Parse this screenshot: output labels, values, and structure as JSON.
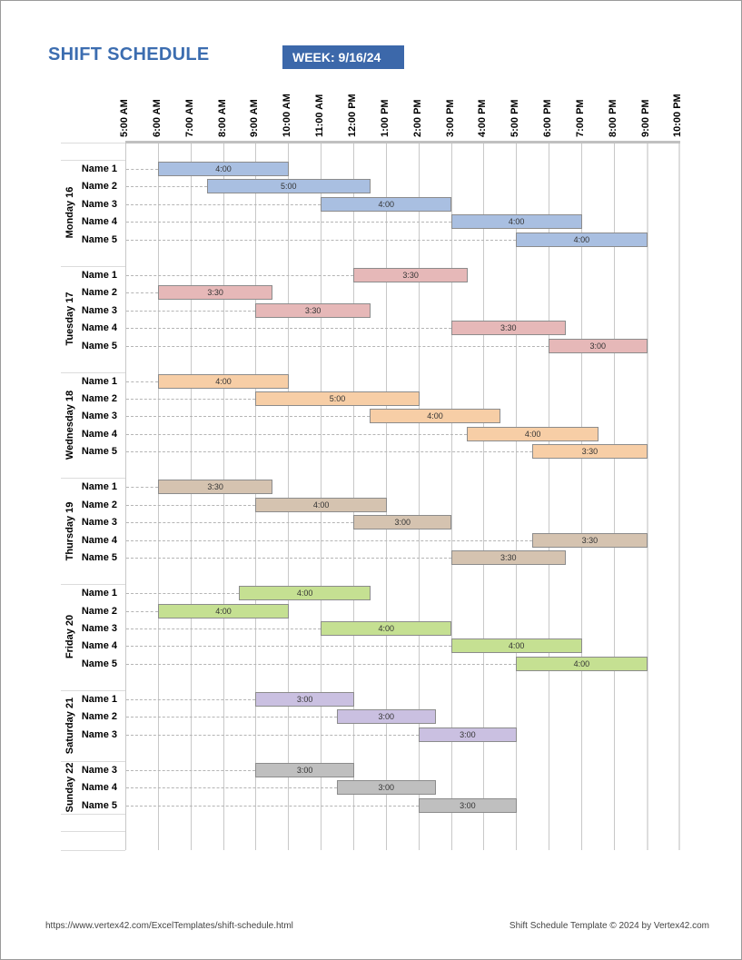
{
  "title": "SHIFT SCHEDULE",
  "week": "WEEK:  9/16/24",
  "hours": [
    "5:00 AM",
    "6:00 AM",
    "7:00 AM",
    "8:00 AM",
    "9:00 AM",
    "10:00 AM",
    "11:00 AM",
    "12:00 PM",
    "1:00 PM",
    "2:00 PM",
    "3:00 PM",
    "4:00 PM",
    "5:00 PM",
    "6:00 PM",
    "7:00 PM",
    "8:00 PM",
    "9:00 PM",
    "10:00 PM"
  ],
  "days": [
    {
      "label": "Monday 16",
      "color": "#a9bfe1",
      "shifts": [
        {
          "name": "Name 1",
          "start": "6:00 AM",
          "end": "10:00 AM",
          "duration": "4:00"
        },
        {
          "name": "Name 2",
          "start": "7:30 AM",
          "end": "12:30 PM",
          "duration": "5:00"
        },
        {
          "name": "Name 3",
          "start": "11:00 AM",
          "end": "3:00 PM",
          "duration": "4:00"
        },
        {
          "name": "Name 4",
          "start": "3:00 PM",
          "end": "7:00 PM",
          "duration": "4:00"
        },
        {
          "name": "Name 5",
          "start": "5:00 PM",
          "end": "9:00 PM",
          "duration": "4:00"
        }
      ]
    },
    {
      "label": "Tuesday 17",
      "color": "#e6b8b8",
      "shifts": [
        {
          "name": "Name 1",
          "start": "12:00 PM",
          "end": "3:30 PM",
          "duration": "3:30"
        },
        {
          "name": "Name 2",
          "start": "6:00 AM",
          "end": "9:30 AM",
          "duration": "3:30"
        },
        {
          "name": "Name 3",
          "start": "9:00 AM",
          "end": "12:30 PM",
          "duration": "3:30"
        },
        {
          "name": "Name 4",
          "start": "3:00 PM",
          "end": "6:30 PM",
          "duration": "3:30"
        },
        {
          "name": "Name 5",
          "start": "6:00 PM",
          "end": "9:00 PM",
          "duration": "3:00"
        }
      ]
    },
    {
      "label": "Wednesday 18",
      "color": "#f7cea6",
      "shifts": [
        {
          "name": "Name 1",
          "start": "6:00 AM",
          "end": "10:00 AM",
          "duration": "4:00"
        },
        {
          "name": "Name 2",
          "start": "9:00 AM",
          "end": "2:00 PM",
          "duration": "5:00"
        },
        {
          "name": "Name 3",
          "start": "12:30 PM",
          "end": "4:30 PM",
          "duration": "4:00"
        },
        {
          "name": "Name 4",
          "start": "3:30 PM",
          "end": "7:30 PM",
          "duration": "4:00"
        },
        {
          "name": "Name 5",
          "start": "5:30 PM",
          "end": "9:00 PM",
          "duration": "3:30"
        }
      ]
    },
    {
      "label": "Thursday 19",
      "color": "#d5c3b0",
      "shifts": [
        {
          "name": "Name 1",
          "start": "6:00 AM",
          "end": "9:30 AM",
          "duration": "3:30"
        },
        {
          "name": "Name 2",
          "start": "9:00 AM",
          "end": "1:00 PM",
          "duration": "4:00"
        },
        {
          "name": "Name 3",
          "start": "12:00 PM",
          "end": "3:00 PM",
          "duration": "3:00"
        },
        {
          "name": "Name 4",
          "start": "5:30 PM",
          "end": "9:00 PM",
          "duration": "3:30"
        },
        {
          "name": "Name 5",
          "start": "3:00 PM",
          "end": "6:30 PM",
          "duration": "3:30"
        }
      ]
    },
    {
      "label": "Friday 20",
      "color": "#c5e092",
      "shifts": [
        {
          "name": "Name 1",
          "start": "8:30 AM",
          "end": "12:30 PM",
          "duration": "4:00"
        },
        {
          "name": "Name 2",
          "start": "6:00 AM",
          "end": "10:00 AM",
          "duration": "4:00"
        },
        {
          "name": "Name 3",
          "start": "11:00 AM",
          "end": "3:00 PM",
          "duration": "4:00"
        },
        {
          "name": "Name 4",
          "start": "3:00 PM",
          "end": "7:00 PM",
          "duration": "4:00"
        },
        {
          "name": "Name 5",
          "start": "5:00 PM",
          "end": "9:00 PM",
          "duration": "4:00"
        }
      ]
    },
    {
      "label": "Saturday 21",
      "color": "#cac0e1",
      "shifts": [
        {
          "name": "Name 1",
          "start": "9:00 AM",
          "end": "12:00 PM",
          "duration": "3:00"
        },
        {
          "name": "Name 2",
          "start": "11:30 AM",
          "end": "2:30 PM",
          "duration": "3:00"
        },
        {
          "name": "Name 3",
          "start": "2:00 PM",
          "end": "5:00 PM",
          "duration": "3:00"
        }
      ]
    },
    {
      "label": "Sunday 22",
      "color": "#bfbfbf",
      "shifts": [
        {
          "name": "Name 3",
          "start": "9:00 AM",
          "end": "12:00 PM",
          "duration": "3:00"
        },
        {
          "name": "Name 4",
          "start": "11:30 AM",
          "end": "2:30 PM",
          "duration": "3:00"
        },
        {
          "name": "Name 5",
          "start": "2:00 PM",
          "end": "5:00 PM",
          "duration": "3:00"
        }
      ]
    }
  ],
  "footer": {
    "url": "https://www.vertex42.com/ExcelTemplates/shift-schedule.html",
    "credit": "Shift Schedule Template © 2024 by Vertex42.com"
  }
}
